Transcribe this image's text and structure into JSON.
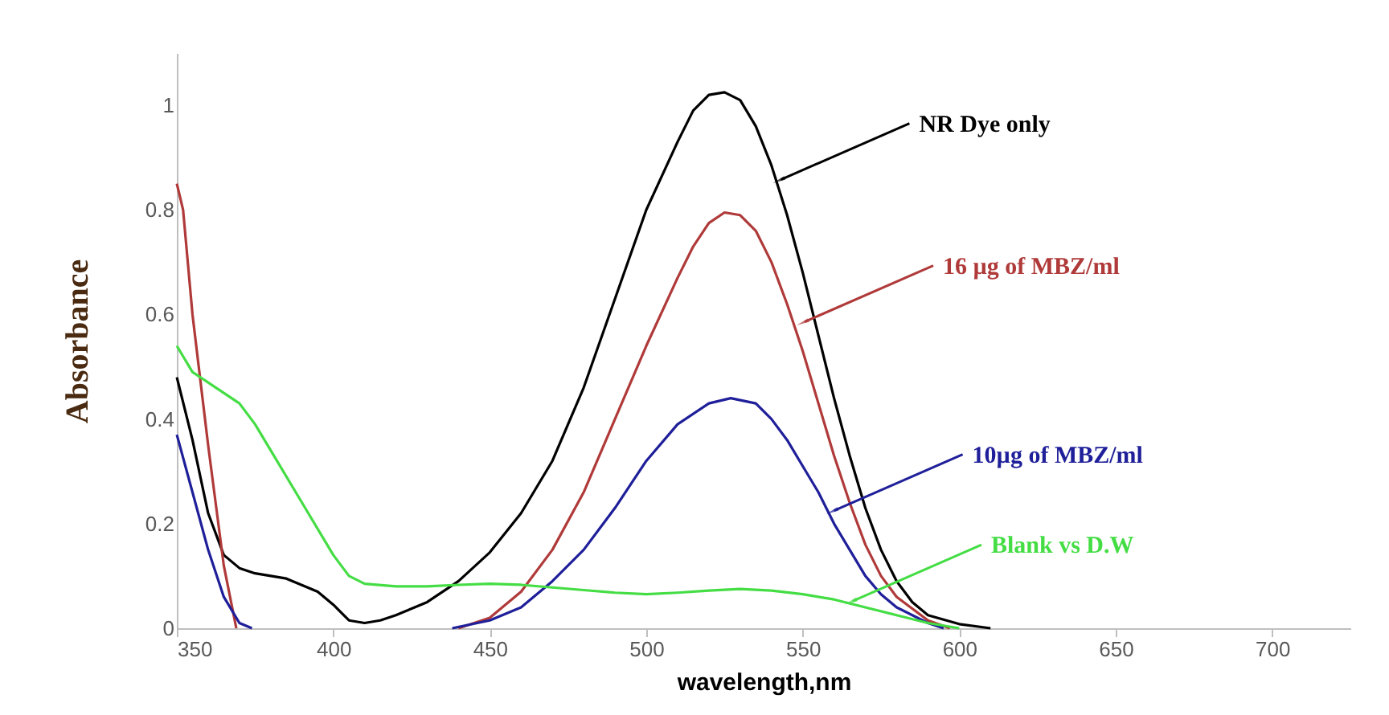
{
  "chart_data": {
    "type": "line",
    "xlabel": "wavelength,nm",
    "ylabel": "Absorbance",
    "xlim": [
      350,
      725
    ],
    "xticks": [
      350,
      400,
      450,
      500,
      550,
      600,
      650,
      700
    ],
    "ylim": [
      0,
      1.1
    ],
    "yticks": [
      0,
      0.2,
      0.4,
      0.6,
      0.8,
      1
    ],
    "grid": false,
    "legend": false,
    "series": [
      {
        "color": "#000000",
        "x": [
          350,
          355,
          360,
          365,
          370,
          375,
          385,
          395,
          400,
          405,
          410,
          415,
          420,
          430,
          440,
          450,
          460,
          470,
          480,
          490,
          500,
          510,
          515,
          520,
          525,
          530,
          535,
          540,
          545,
          550,
          555,
          560,
          565,
          570,
          575,
          580,
          585,
          590,
          600,
          610
        ],
        "values": [
          0.48,
          0.36,
          0.22,
          0.14,
          0.115,
          0.105,
          0.095,
          0.07,
          0.045,
          0.015,
          0.01,
          0.015,
          0.025,
          0.05,
          0.09,
          0.145,
          0.22,
          0.32,
          0.46,
          0.63,
          0.8,
          0.93,
          0.99,
          1.02,
          1.025,
          1.01,
          0.96,
          0.885,
          0.79,
          0.68,
          0.56,
          0.44,
          0.33,
          0.23,
          0.15,
          0.09,
          0.05,
          0.025,
          0.008,
          0
        ]
      },
      {
        "color": "#b03a3a",
        "x": [
          350,
          352,
          355,
          360,
          365,
          369,
          400,
          440,
          450,
          460,
          470,
          480,
          490,
          500,
          510,
          515,
          520,
          525,
          530,
          535,
          540,
          545,
          550,
          555,
          560,
          565,
          570,
          575,
          580,
          590,
          597
        ],
        "values": [
          0.85,
          0.8,
          0.6,
          0.35,
          0.12,
          0,
          null,
          0,
          0.02,
          0.07,
          0.15,
          0.26,
          0.4,
          0.54,
          0.67,
          0.73,
          0.775,
          0.795,
          0.79,
          0.76,
          0.7,
          0.62,
          0.53,
          0.43,
          0.33,
          0.24,
          0.16,
          0.1,
          0.06,
          0.015,
          0
        ]
      },
      {
        "color": "#1f1f9a",
        "x": [
          350,
          355,
          360,
          365,
          370,
          374,
          400,
          438,
          450,
          460,
          470,
          480,
          490,
          500,
          510,
          520,
          527,
          535,
          540,
          545,
          550,
          555,
          560,
          565,
          570,
          575,
          580,
          590,
          595
        ],
        "values": [
          0.37,
          0.26,
          0.15,
          0.06,
          0.01,
          0,
          null,
          0,
          0.015,
          0.04,
          0.09,
          0.15,
          0.23,
          0.32,
          0.39,
          0.43,
          0.44,
          0.43,
          0.4,
          0.36,
          0.31,
          0.26,
          0.2,
          0.15,
          0.1,
          0.065,
          0.04,
          0.01,
          0
        ]
      },
      {
        "color": "#44dd44",
        "x": [
          350,
          355,
          360,
          370,
          375,
          380,
          390,
          400,
          405,
          410,
          420,
          430,
          440,
          450,
          460,
          470,
          480,
          490,
          500,
          510,
          520,
          530,
          540,
          550,
          560,
          570,
          580,
          590,
          600
        ],
        "values": [
          0.54,
          0.49,
          0.47,
          0.43,
          0.39,
          0.34,
          0.24,
          0.14,
          0.1,
          0.085,
          0.08,
          0.08,
          0.083,
          0.085,
          0.083,
          0.078,
          0.073,
          0.068,
          0.065,
          0.068,
          0.072,
          0.075,
          0.072,
          0.065,
          0.055,
          0.04,
          0.025,
          0.01,
          0
        ]
      }
    ],
    "annotations": [
      {
        "text": "NR Dye only",
        "x": 543,
        "y": 0.858
      },
      {
        "text": "16 µg of MBZ/ml",
        "x": 550.6,
        "y": 0.586
      },
      {
        "text": "10µg of MBZ/ml",
        "x": 560,
        "y": 0.225
      },
      {
        "text": "Blank vs D.W",
        "x": 566,
        "y": 0.052
      }
    ]
  }
}
